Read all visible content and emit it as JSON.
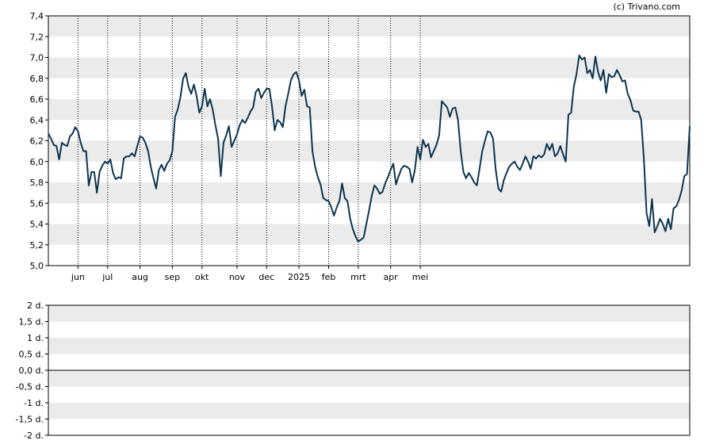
{
  "credit": "(c) Trivano.com",
  "colors": {
    "line": "#0d3550",
    "band": "#ebebeb",
    "grid": "#000000",
    "axis": "#000000"
  },
  "chart_data": [
    {
      "type": "line",
      "title": "",
      "ylim": [
        5.0,
        7.4
      ],
      "yticks": [
        "5,0",
        "5,2",
        "5,4",
        "5,6",
        "5,8",
        "6,0",
        "6,2",
        "6,4",
        "6,6",
        "6,8",
        "7,0",
        "7,2",
        "7,4"
      ],
      "xticks": [
        "jun",
        "jul",
        "aug",
        "sep",
        "okt",
        "nov",
        "dec",
        "2025",
        "feb",
        "mrt",
        "apr",
        "mei"
      ],
      "xtick_index": [
        11,
        22,
        34,
        46,
        57,
        70,
        81,
        93,
        104,
        115,
        127,
        138
      ],
      "grid": "vertical dotted at month ticks, alternating horizontal bands",
      "series": [
        {
          "values": [
            6.27,
            6.22,
            6.16,
            6.15,
            6.02,
            6.18,
            6.16,
            6.15,
            6.24,
            6.27,
            6.33,
            6.29,
            6.18,
            6.1,
            6.1,
            5.77,
            5.9,
            5.9,
            5.7,
            5.9,
            5.96,
            6.0,
            5.98,
            6.02,
            5.89,
            5.83,
            5.85,
            5.84,
            6.03,
            6.05,
            6.05,
            6.08,
            6.05,
            6.15,
            6.24,
            6.23,
            6.18,
            6.1,
            5.95,
            5.84,
            5.74,
            5.92,
            5.97,
            5.91,
            5.98,
            6.01,
            6.1,
            6.43,
            6.5,
            6.62,
            6.8,
            6.85,
            6.72,
            6.65,
            6.74,
            6.63,
            6.47,
            6.53,
            6.7,
            6.53,
            6.6,
            6.5,
            6.35,
            6.22,
            5.86,
            6.18,
            6.25,
            6.34,
            6.14,
            6.2,
            6.26,
            6.35,
            6.4,
            6.37,
            6.42,
            6.48,
            6.52,
            6.67,
            6.7,
            6.61,
            6.66,
            6.7,
            6.7,
            6.53,
            6.3,
            6.4,
            6.38,
            6.33,
            6.53,
            6.65,
            6.78,
            6.84,
            6.86,
            6.78,
            6.63,
            6.69,
            6.53,
            6.52,
            6.1,
            5.95,
            5.85,
            5.78,
            5.65,
            5.63,
            5.62,
            5.56,
            5.48,
            5.56,
            5.62,
            5.79,
            5.65,
            5.62,
            5.45,
            5.35,
            5.28,
            5.23,
            5.25,
            5.27,
            5.4,
            5.53,
            5.67,
            5.77,
            5.74,
            5.69,
            5.71,
            5.79,
            5.85,
            5.92,
            5.98,
            5.78,
            5.86,
            5.93,
            5.96,
            5.95,
            5.93,
            5.8,
            5.92,
            6.14,
            6.02,
            6.21,
            6.14,
            6.17,
            6.04,
            6.1,
            6.16,
            6.25,
            6.58,
            6.55,
            6.52,
            6.43,
            6.51,
            6.52,
            6.4,
            6.1,
            5.9,
            5.84,
            5.89,
            5.85,
            5.8,
            5.77,
            5.93,
            6.1,
            6.2,
            6.29,
            6.28,
            6.22,
            5.92,
            5.74,
            5.71,
            5.82,
            5.89,
            5.95,
            5.98,
            6.0,
            5.95,
            5.92,
            5.98,
            6.05,
            6.0,
            5.93,
            6.05,
            6.03,
            6.06,
            6.04,
            6.07,
            6.17,
            6.11,
            6.17,
            6.05,
            6.08,
            6.15,
            6.07,
            6.0,
            6.45,
            6.47,
            6.72,
            6.84,
            7.02,
            6.98,
            7.0,
            6.85,
            6.88,
            6.8,
            7.01,
            6.86,
            6.78,
            6.88,
            6.66,
            6.84,
            6.81,
            6.82,
            6.88,
            6.83,
            6.77,
            6.78,
            6.65,
            6.59,
            6.49,
            6.48,
            6.48,
            6.4,
            6.02,
            5.5,
            5.38,
            5.64,
            5.32,
            5.38,
            5.45,
            5.4,
            5.33,
            5.45,
            5.35,
            5.55,
            5.57,
            5.63,
            5.72,
            5.86,
            5.88,
            6.34
          ]
        }
      ]
    },
    {
      "type": "line",
      "title": "",
      "ylim": [
        -2,
        2
      ],
      "yticks": [
        "2 d.",
        "1,5 d.",
        "1 d.",
        "0,5 d.",
        "0,0 d.",
        "-0,5 d.",
        "-1 d.",
        "-1,5 d.",
        "-2 d."
      ],
      "grid": "alternating horizontal bands, zero line",
      "series": []
    }
  ]
}
